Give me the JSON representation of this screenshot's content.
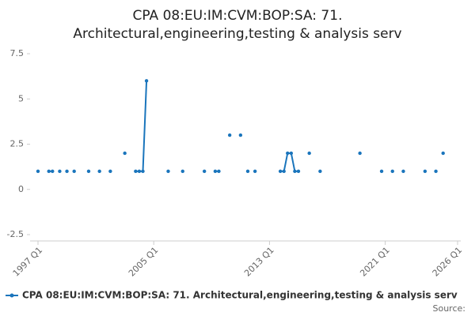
{
  "chart_data": {
    "type": "line",
    "title": [
      "CPA 08:EU:IM:CVM:BOP:SA: 71.",
      "Architectural,engineering,testing & analysis serv"
    ],
    "x": [
      1997,
      1997.25,
      1997.5,
      1997.75,
      1998,
      1998.25,
      1998.5,
      1998.75,
      1999,
      1999.25,
      1999.5,
      1999.75,
      2000,
      2000.25,
      2000.5,
      2000.75,
      2001,
      2001.25,
      2001.5,
      2001.75,
      2002,
      2002.25,
      2002.5,
      2002.75,
      2003,
      2003.25,
      2003.5,
      2003.75,
      2004,
      2004.25,
      2004.5,
      2004.75,
      2005,
      2005.25,
      2005.5,
      2005.75,
      2006,
      2006.25,
      2006.5,
      2006.75,
      2007,
      2007.25,
      2007.5,
      2007.75,
      2008,
      2008.25,
      2008.5,
      2008.75,
      2009,
      2009.25,
      2009.5,
      2009.75,
      2010,
      2010.25,
      2010.5,
      2010.75,
      2011,
      2011.25,
      2011.5,
      2011.75,
      2012,
      2012.25,
      2012.5,
      2012.75,
      2013,
      2013.25,
      2013.5,
      2013.75,
      2014,
      2014.25,
      2014.5,
      2014.75,
      2015,
      2015.25,
      2015.5,
      2015.75,
      2016,
      2016.25,
      2016.5,
      2016.75,
      2017,
      2017.25,
      2017.5,
      2017.75,
      2018,
      2018.25,
      2018.5,
      2018.75,
      2019,
      2019.25,
      2019.5,
      2019.75,
      2020,
      2020.25,
      2020.5,
      2020.75,
      2021,
      2021.25,
      2021.5,
      2021.75,
      2022,
      2022.25,
      2022.5,
      2022.75,
      2023,
      2023.25,
      2023.5,
      2023.75,
      2024,
      2024.25,
      2024.5,
      2024.75,
      2025,
      2025.25,
      2025.5,
      2025.75,
      2026
    ],
    "series": [
      {
        "name": "CPA 08:EU:IM:CVM:BOP:SA: 71. Architectural,engineering,testing & analysis serv",
        "color": "#1a75bc",
        "values": [
          1,
          null,
          null,
          1,
          1,
          null,
          1,
          null,
          1,
          null,
          1,
          null,
          null,
          null,
          1,
          null,
          null,
          1,
          null,
          null,
          1,
          null,
          null,
          null,
          2,
          null,
          null,
          1,
          1,
          1,
          6,
          null,
          null,
          null,
          null,
          null,
          1,
          null,
          null,
          null,
          1,
          null,
          null,
          null,
          null,
          null,
          1,
          null,
          null,
          1,
          1,
          null,
          null,
          3,
          null,
          null,
          3,
          null,
          1,
          null,
          1,
          null,
          null,
          null,
          null,
          null,
          null,
          1,
          1,
          2,
          2,
          1,
          1,
          null,
          null,
          2,
          null,
          null,
          1,
          null,
          null,
          null,
          null,
          null,
          null,
          null,
          null,
          null,
          null,
          2,
          null,
          null,
          null,
          null,
          null,
          1,
          null,
          null,
          1,
          null,
          null,
          1,
          null,
          null,
          null,
          null,
          null,
          1,
          null,
          null,
          1,
          null,
          2,
          null,
          null,
          null,
          null
        ]
      }
    ],
    "xlim": [
      1997,
      2026
    ],
    "xticks": [
      {
        "value": 1997,
        "label": "1997 Q1"
      },
      {
        "value": 2005,
        "label": "2005 Q1"
      },
      {
        "value": 2013,
        "label": "2013 Q1"
      },
      {
        "value": 2021,
        "label": "2021 Q1"
      },
      {
        "value": 2026,
        "label": "2026 Q1"
      }
    ],
    "ylim": [
      -2.5,
      7.5
    ],
    "yticks": [
      -2.5,
      0,
      2.5,
      5,
      7.5
    ],
    "source_label": "Source:"
  }
}
